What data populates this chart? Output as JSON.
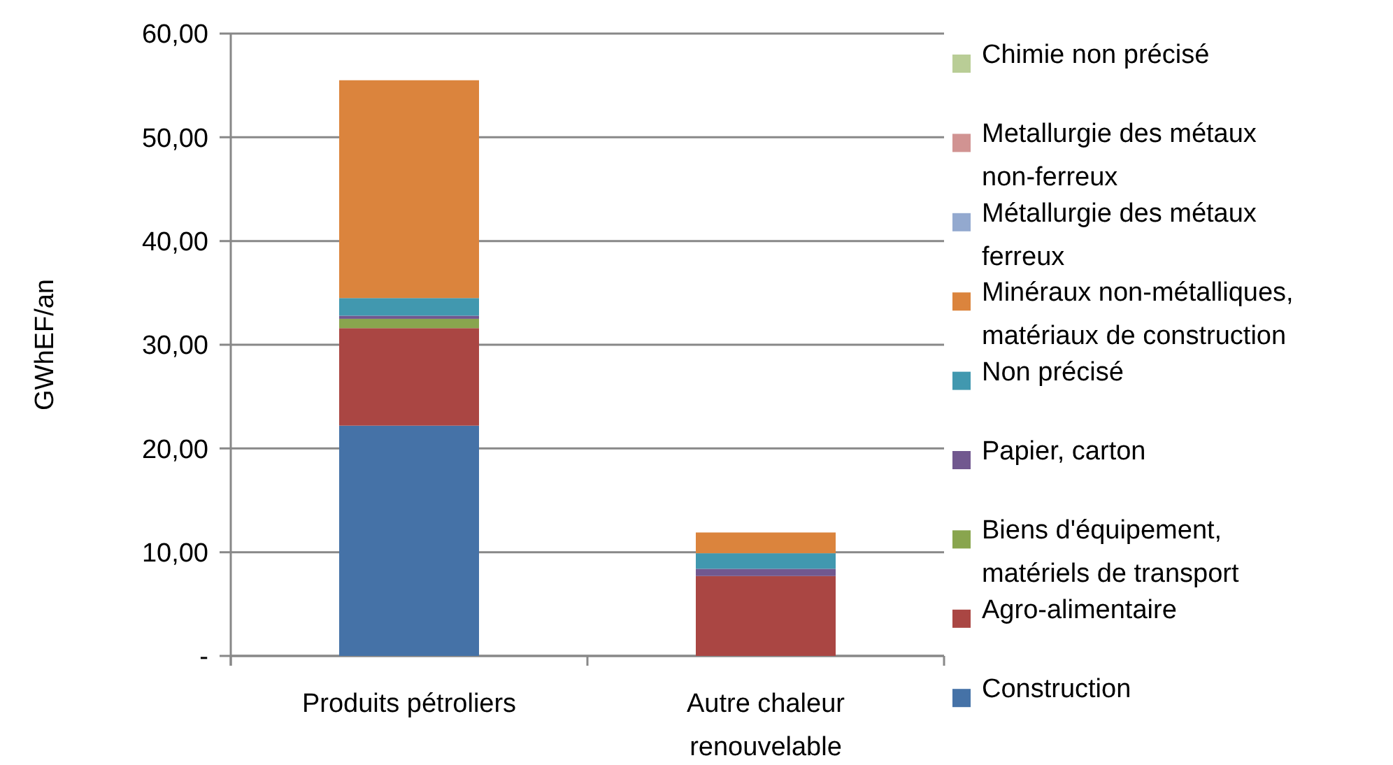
{
  "chart_data": {
    "type": "bar",
    "stacked": true,
    "ylabel": "GWhEF/an",
    "categories": [
      "Produits pétroliers",
      "Autre chaleur renouvelable"
    ],
    "series": [
      {
        "name": "Construction",
        "color": "#4572a7",
        "values": [
          22.2,
          0
        ]
      },
      {
        "name": "Agro-alimentaire",
        "color": "#aa4643",
        "values": [
          9.4,
          7.7
        ]
      },
      {
        "name": "Biens d'équipement, matériels de transport",
        "color": "#89a54e",
        "values": [
          0.9,
          0
        ]
      },
      {
        "name": "Papier, carton",
        "color": "#71588f",
        "values": [
          0.3,
          0.7
        ]
      },
      {
        "name": "Non précisé",
        "color": "#4198af",
        "values": [
          1.7,
          1.5
        ]
      },
      {
        "name": "Minéraux non-métalliques, matériaux de construction",
        "color": "#db843d",
        "values": [
          21.0,
          2.0
        ]
      },
      {
        "name": "Métallurgie des métaux ferreux",
        "color": "#93a9cf",
        "values": [
          0,
          0
        ]
      },
      {
        "name": "Metallurgie des métaux non-ferreux",
        "color": "#d19392",
        "values": [
          0,
          0
        ]
      },
      {
        "name": "Chimie non précisé",
        "color": "#b9cd96",
        "values": [
          0,
          0
        ]
      }
    ],
    "ylim": [
      0,
      60
    ],
    "yticks": [
      {
        "value": 0,
        "label": "-"
      },
      {
        "value": 10,
        "label": "10,00"
      },
      {
        "value": 20,
        "label": "20,00"
      },
      {
        "value": 30,
        "label": "30,00"
      },
      {
        "value": 40,
        "label": "40,00"
      },
      {
        "value": 50,
        "label": "50,00"
      },
      {
        "value": 60,
        "label": "60,00"
      }
    ],
    "grid": "y",
    "legend": "right"
  }
}
